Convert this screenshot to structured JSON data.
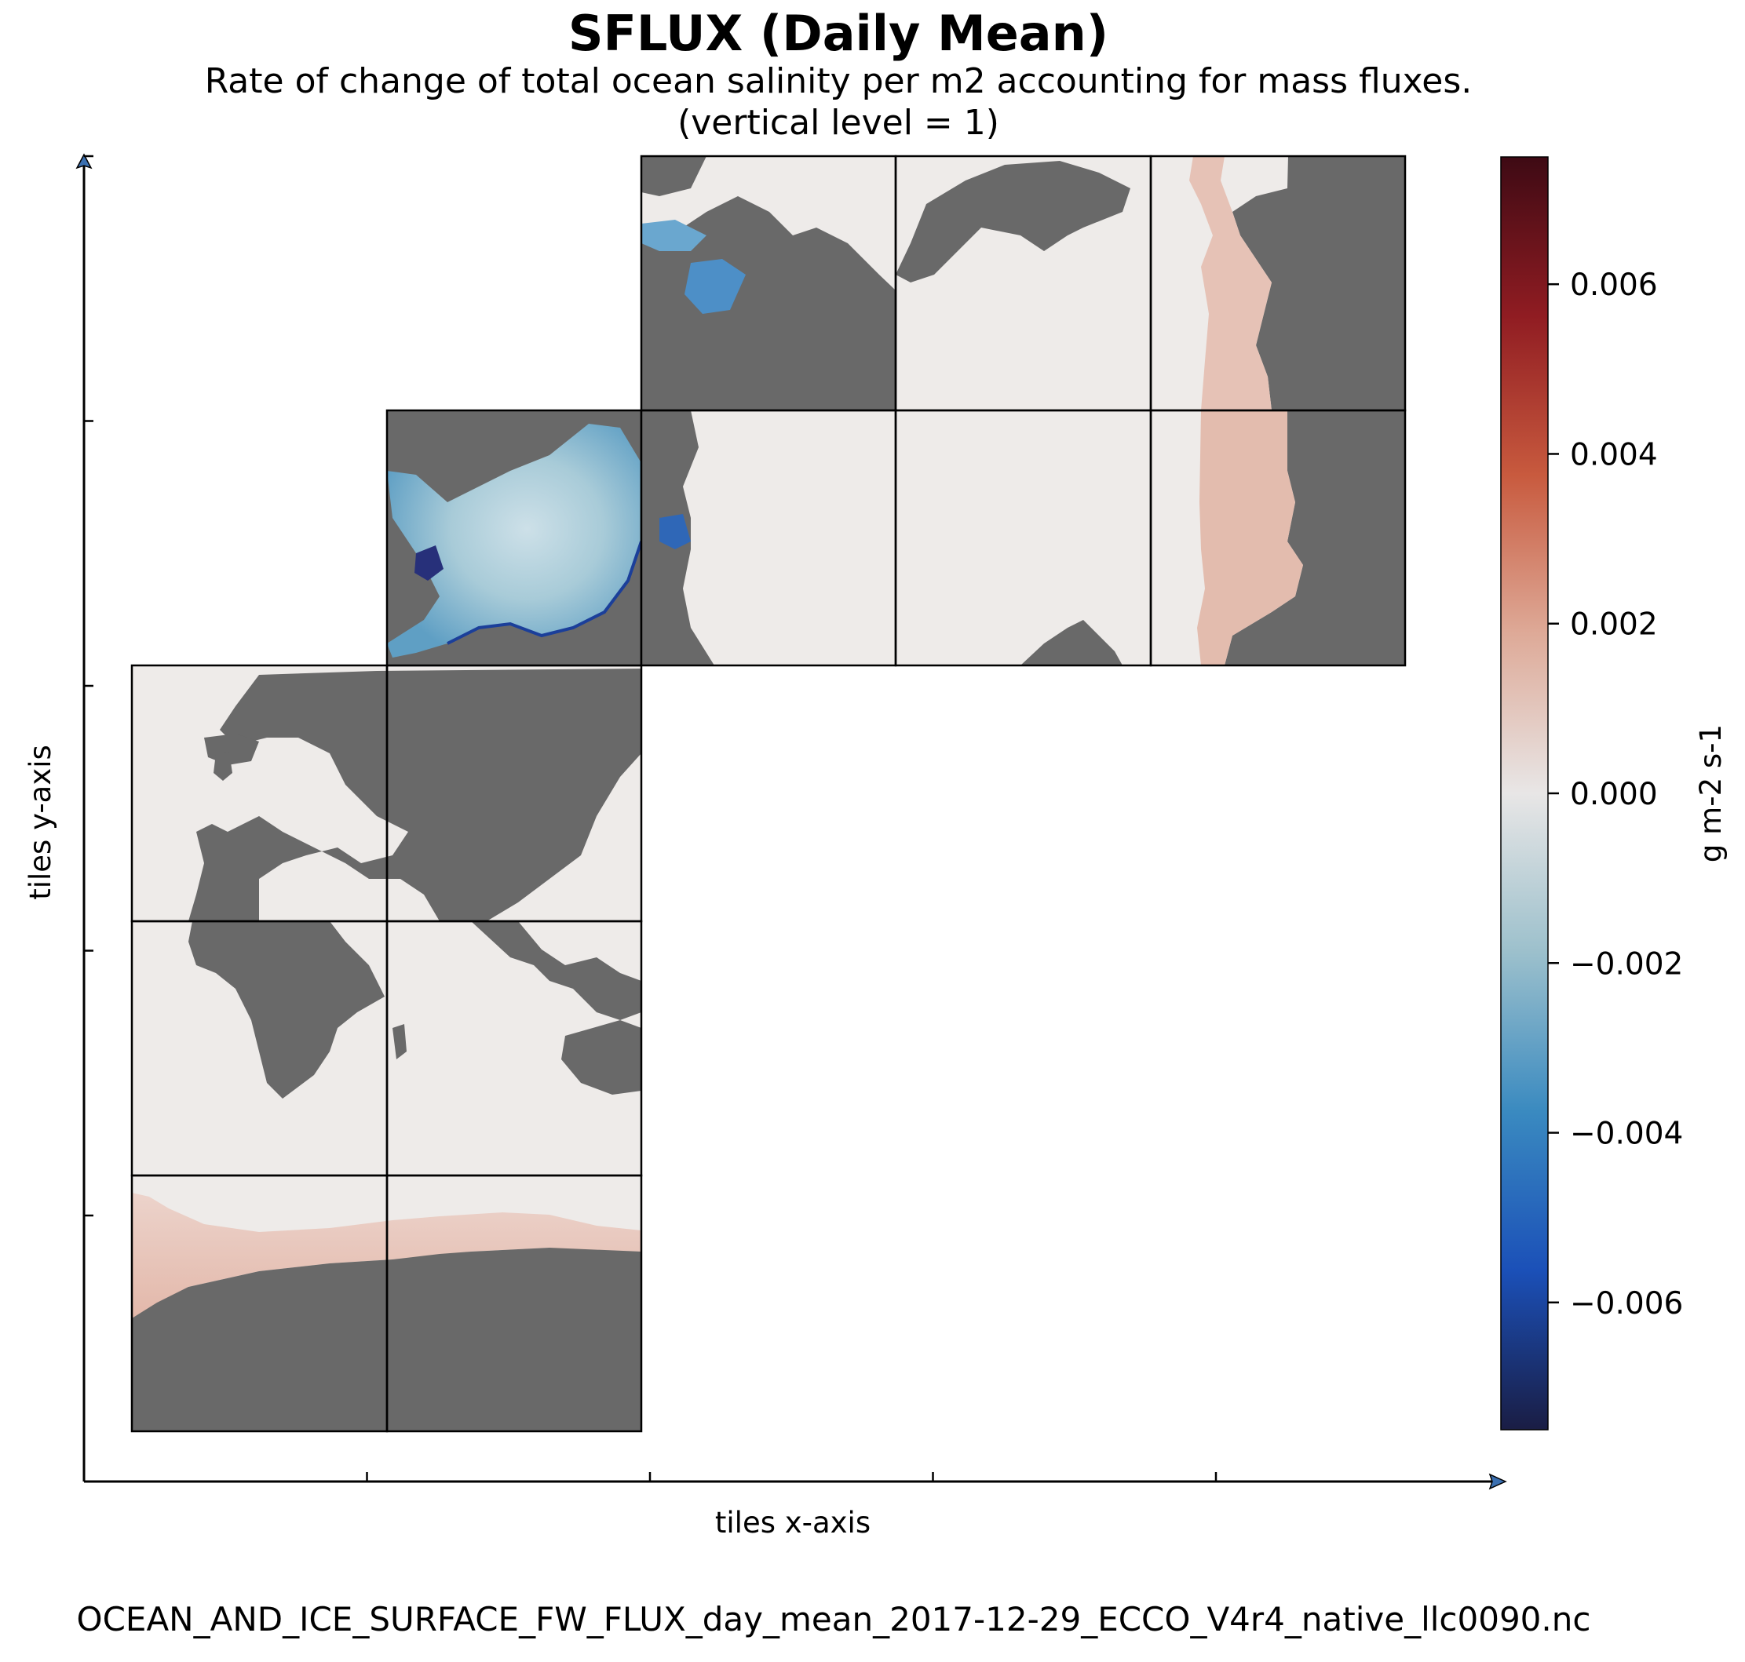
{
  "chart_data": {
    "type": "heatmap",
    "title": "SFLUX (Daily Mean)",
    "subtitle_line1": "Rate of change of total ocean salinity per m2 accounting for mass fluxes.",
    "subtitle_line2": "(vertical level = 1)",
    "xlabel": "tiles x-axis",
    "ylabel": "tiles y-axis",
    "colorbar": {
      "label": "g m-2 s-1",
      "range": [
        -0.0075,
        0.0075
      ],
      "ticks": [
        {
          "value": 0.006,
          "label": "0.006"
        },
        {
          "value": 0.004,
          "label": "0.004"
        },
        {
          "value": 0.002,
          "label": "0.002"
        },
        {
          "value": 0.0,
          "label": "0.000"
        },
        {
          "value": -0.002,
          "label": "−0.002"
        },
        {
          "value": -0.004,
          "label": "−0.004"
        },
        {
          "value": -0.006,
          "label": "−0.006"
        }
      ],
      "colormap": [
        "#1a1d44",
        "#1b50b8",
        "#3a8ac0",
        "#9cc0cc",
        "#e8e6e6",
        "#deaa98",
        "#c85a3e",
        "#901c22",
        "#3e0a14"
      ]
    },
    "land_color": "#696969",
    "ocean_color": "#eeebe9",
    "grid": false,
    "x_ticks_unlabeled": 5,
    "y_ticks_unlabeled": 5
  },
  "footer": "OCEAN_AND_ICE_SURFACE_FW_FLUX_day_mean_2017-12-29_ECCO_V4r4_native_llc0090.nc"
}
